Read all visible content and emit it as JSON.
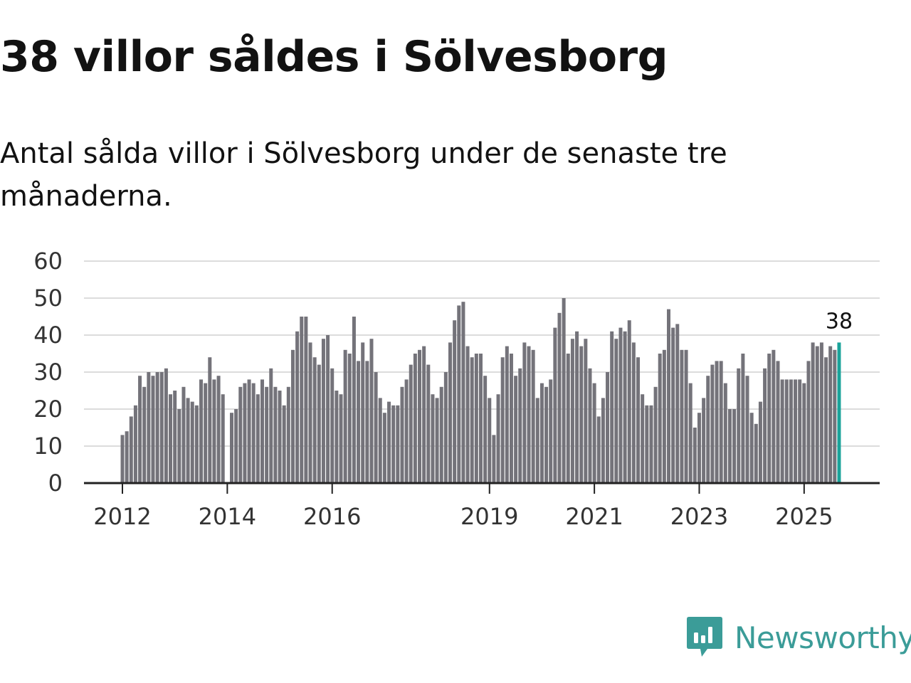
{
  "title": "38 villor såldes i Sölvesborg",
  "subtitle": "Antal sålda villor i Sölvesborg under de senaste tre månaderna.",
  "brand": {
    "name": "Newsworthy",
    "icon": "newsworthy-bar-chart-icon",
    "color": "#3b9c98"
  },
  "colors": {
    "bar": "#74737a",
    "highlight": "#1aa39a",
    "gridline": "#dcdcdc",
    "axis": "#222222"
  },
  "chart_data": {
    "type": "bar",
    "title": "38 villor såldes i Sölvesborg",
    "xlabel": "",
    "ylabel": "",
    "ylim": [
      0,
      60
    ],
    "yticks": [
      0,
      10,
      20,
      30,
      40,
      50,
      60
    ],
    "grid": true,
    "start": "2012-01",
    "year_ticks": [
      "2012",
      "2014",
      "2016",
      "2019",
      "2021",
      "2023",
      "2025"
    ],
    "highlight_label": "38",
    "values": [
      13,
      14,
      18,
      21,
      29,
      26,
      30,
      29,
      30,
      30,
      31,
      24,
      25,
      20,
      26,
      23,
      22,
      21,
      28,
      27,
      34,
      28,
      29,
      24,
      null,
      19,
      20,
      26,
      27,
      28,
      27,
      24,
      28,
      26,
      31,
      26,
      25,
      21,
      26,
      36,
      41,
      45,
      45,
      38,
      34,
      32,
      39,
      40,
      31,
      25,
      24,
      36,
      35,
      45,
      33,
      38,
      33,
      39,
      30,
      23,
      19,
      22,
      21,
      21,
      26,
      28,
      32,
      35,
      36,
      37,
      32,
      24,
      23,
      26,
      30,
      38,
      44,
      48,
      49,
      37,
      34,
      35,
      35,
      29,
      23,
      13,
      24,
      34,
      37,
      35,
      29,
      31,
      38,
      37,
      36,
      23,
      27,
      26,
      28,
      42,
      46,
      50,
      35,
      39,
      41,
      37,
      39,
      31,
      27,
      18,
      23,
      30,
      41,
      39,
      42,
      41,
      44,
      38,
      34,
      24,
      21,
      21,
      26,
      35,
      36,
      47,
      42,
      43,
      36,
      36,
      27,
      15,
      19,
      23,
      29,
      32,
      33,
      33,
      27,
      20,
      20,
      31,
      35,
      29,
      19,
      16,
      22,
      31,
      35,
      36,
      33,
      28,
      28,
      28,
      28,
      28,
      27,
      33,
      38,
      37,
      38,
      34,
      37,
      36,
      38
    ]
  }
}
